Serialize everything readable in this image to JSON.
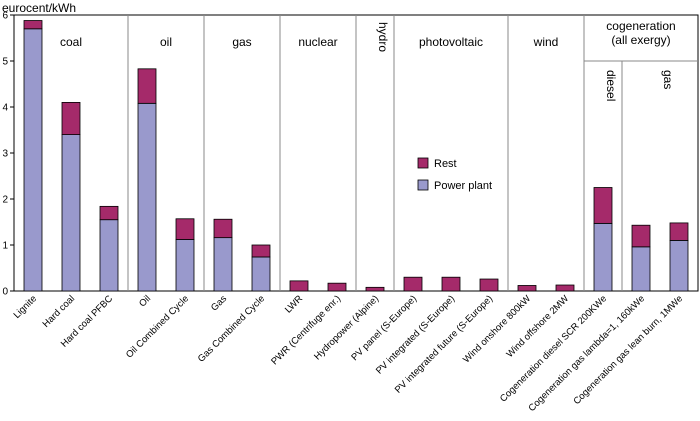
{
  "chart_data": {
    "type": "bar",
    "stacked": true,
    "ylabel": "eurocent/kWh",
    "ylim": [
      0,
      6
    ],
    "yticks": [
      0,
      1,
      2,
      3,
      4,
      5,
      6
    ],
    "grid": false,
    "legend_position": "center",
    "categories": [
      "Lignite",
      "Hard coal",
      "Hard coal PFBC",
      "Oil",
      "Oil Combined Cycle",
      "Gas",
      "Gas Combined Cycle",
      "LWR",
      "PWR (Centrifuge enr.)",
      "Hydropower (Alpine)",
      "PV panel (S-Europe)",
      "PV integrated (S-Europe)",
      "PV integrated future (S-Europe)",
      "Wind onshore 800kW",
      "Wind offshore 2MW",
      "Cogeneration diesel SCR 200KWe",
      "Cogeneration gas lambda=1, 160kWe",
      "Cogeneration gas lean burn, 1MWe"
    ],
    "series": [
      {
        "name": "Power plant",
        "color": "#9999cc",
        "values": [
          5.7,
          3.4,
          1.55,
          4.08,
          1.12,
          1.16,
          0.74,
          0,
          0,
          0,
          0,
          0,
          0,
          0,
          0,
          1.47,
          0.96,
          1.1
        ]
      },
      {
        "name": "Rest",
        "color": "#a52a6a",
        "values": [
          0.18,
          0.7,
          0.29,
          0.75,
          0.45,
          0.4,
          0.26,
          0.22,
          0.17,
          0.08,
          0.3,
          0.3,
          0.26,
          0.12,
          0.13,
          0.78,
          0.47,
          0.38
        ]
      }
    ],
    "groups": [
      {
        "label": "coal",
        "start": 0,
        "end": 2
      },
      {
        "label": "oil",
        "start": 3,
        "end": 4
      },
      {
        "label": "gas",
        "start": 5,
        "end": 6
      },
      {
        "label": "nuclear",
        "start": 7,
        "end": 8
      },
      {
        "label": "hydro",
        "start": 9,
        "end": 9,
        "vertical": true
      },
      {
        "label": "photovoltaic",
        "start": 10,
        "end": 12
      },
      {
        "label": "wind",
        "start": 13,
        "end": 14
      },
      {
        "label": "cogeneration\n(all exergy)",
        "start": 15,
        "end": 17
      }
    ],
    "subgroups": [
      {
        "label": "diesel",
        "start": 15,
        "end": 15
      },
      {
        "label": "gas",
        "start": 16,
        "end": 17
      }
    ],
    "legend": [
      "Rest",
      "Power plant"
    ]
  }
}
